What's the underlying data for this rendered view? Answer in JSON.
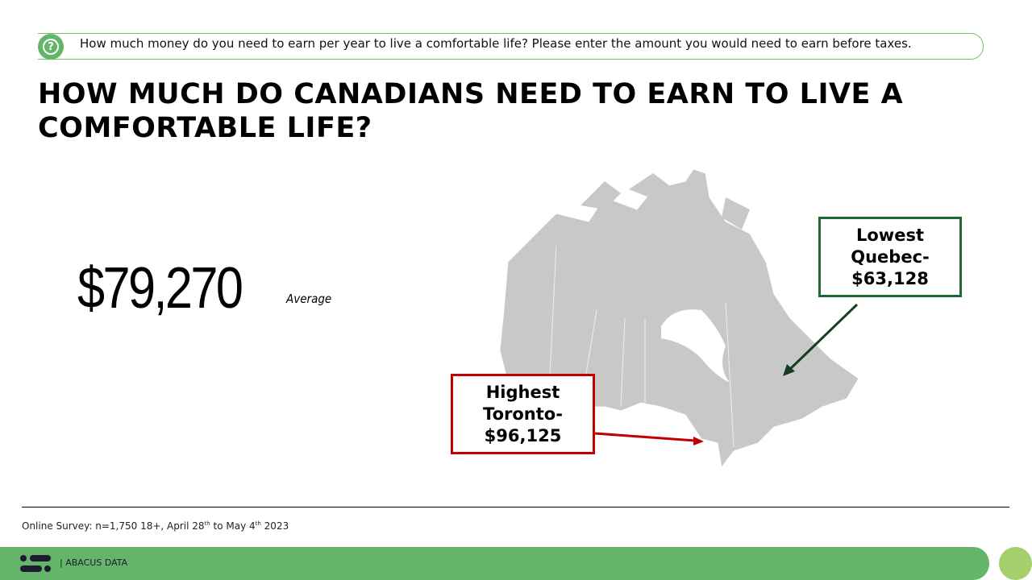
{
  "question": {
    "icon": "question-bubble-icon",
    "text": "How much money do you need to earn per year to live a comfortable life? Please enter the amount you would need to earn before taxes."
  },
  "title": "HOW MUCH DO CANADIANS NEED TO EARN TO LIVE A COMFORTABLE LIFE?",
  "average": {
    "value": "$79,270",
    "label": "Average"
  },
  "callouts": {
    "lowest": {
      "line1": "Lowest",
      "line2": "Quebec-",
      "line3": "$63,128",
      "color": "#1f6b36"
    },
    "highest": {
      "line1": "Highest",
      "line2": "Toronto-",
      "line3": "$96,125",
      "color": "#c00000"
    }
  },
  "source": {
    "text": "Online Survey: n=1,750 18+, April 28",
    "sup1": "th",
    "mid": " to May 4",
    "sup2": "th",
    "end": " 2023"
  },
  "footer": {
    "brand": "|  ABACUS DATA",
    "color": "#64b46a"
  }
}
